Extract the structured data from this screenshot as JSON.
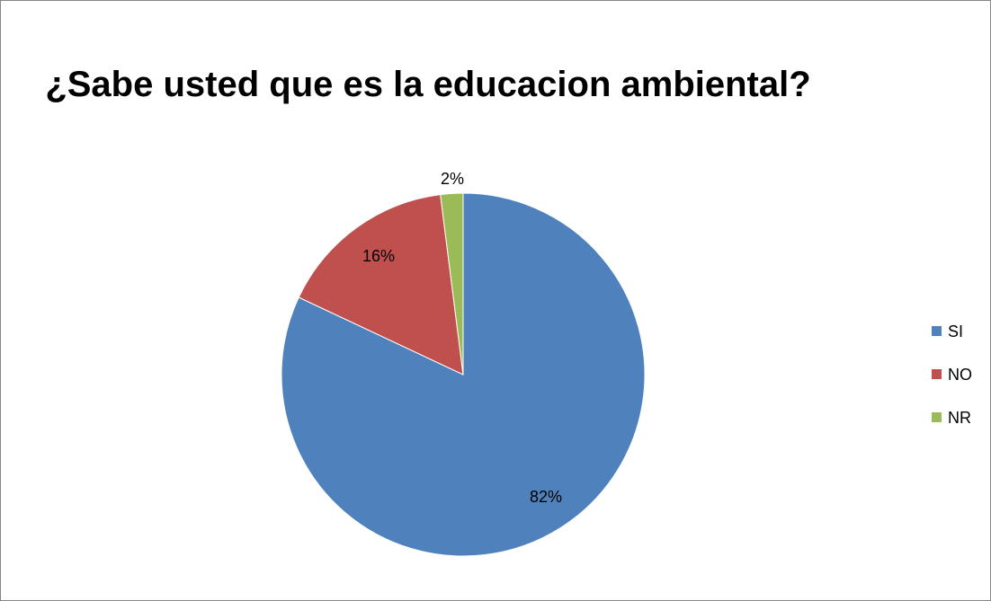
{
  "chart_data": {
    "type": "pie",
    "title": "¿Sabe usted que es la educacion ambiental?",
    "categories": [
      "SI",
      "NO",
      "NR"
    ],
    "values": [
      82,
      16,
      2
    ],
    "data_labels": [
      "82%",
      "16%",
      "2%"
    ],
    "colors": [
      "#4F81BD",
      "#C0504D",
      "#9BBB59"
    ],
    "legend_position": "right",
    "start_angle": "12 o'clock, clockwise"
  }
}
